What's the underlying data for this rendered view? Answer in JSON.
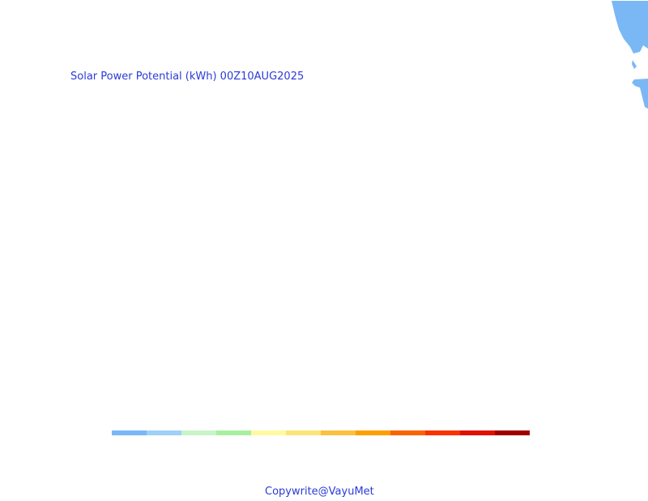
{
  "map": {
    "title": "Solar Power Potential (kWh) 00Z10AUG2025",
    "land_color": "#7ab8f5"
  },
  "colorbar": {
    "colors": [
      "#7ab8f5",
      "#9fd0f7",
      "#c8f5c8",
      "#a8f0a0",
      "#fffaa0",
      "#fde47a",
      "#fcc040",
      "#fba000",
      "#fa6400",
      "#fa3200",
      "#e01000",
      "#a00000"
    ]
  },
  "footer": {
    "copyright": "Copywrite@VayuMet"
  }
}
